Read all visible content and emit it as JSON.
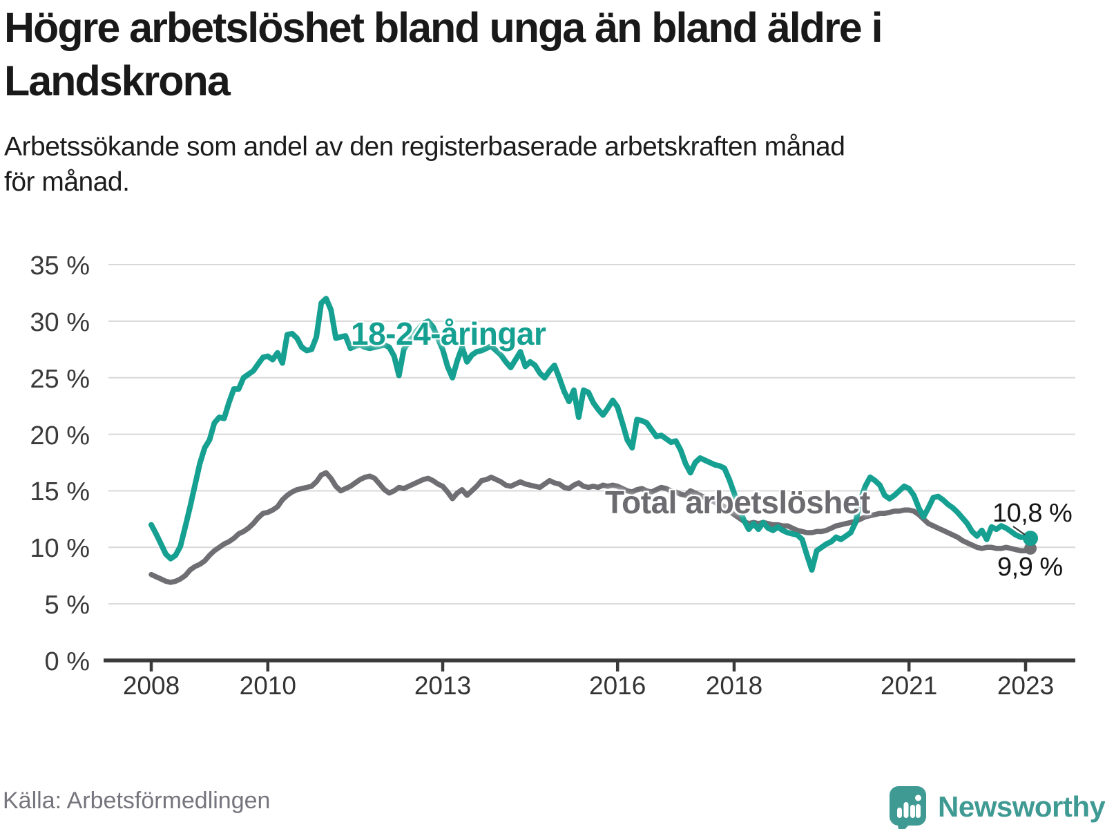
{
  "header": {
    "title": "Högre arbetslöshet bland unga än bland äldre i\nLandskrona",
    "subtitle": "Arbetssökande som andel av den registerbaserade arbetskraften månad\nför månad."
  },
  "footer": {
    "source": "Källa: Arbetsförmedlingen",
    "brand": "Newsworthy"
  },
  "colors": {
    "youth_line": "#15a091",
    "total_line": "#6e6e73",
    "grid": "#d8d8d8",
    "axis": "#3a3a3a",
    "title_text": "#191919",
    "footer_text": "#75757d",
    "logo": "#3f9a93",
    "annotation_text": "#151515"
  },
  "chart_data": {
    "type": "line",
    "unit": "%",
    "grid": "horizontal",
    "legend_position": "inline-labels",
    "ylim": [
      0,
      35
    ],
    "y_tick_values": [
      35,
      30,
      25,
      20,
      15,
      10,
      5,
      0
    ],
    "y_ticks": [
      "35 %",
      "30 %",
      "25 %",
      "20 %",
      "15 %",
      "10 %",
      "5 %",
      "0 %"
    ],
    "x_ticks": [
      2008,
      2010,
      2013,
      2016,
      2018,
      2021,
      2023
    ],
    "x_monthly_from": "2008-01",
    "x_monthly_to": "2023-02",
    "series": [
      {
        "name": "18-24-åringar",
        "color": "#15a091",
        "end_label": "10,8 %",
        "end_value": 10.8,
        "values": [
          12.0,
          11.2,
          10.3,
          9.4,
          9.0,
          9.3,
          10.1,
          11.8,
          13.6,
          15.5,
          17.4,
          18.8,
          19.5,
          21.0,
          21.5,
          21.4,
          22.8,
          24.0,
          24.0,
          25.0,
          25.3,
          25.6,
          26.2,
          26.8,
          26.9,
          26.6,
          27.2,
          26.3,
          28.8,
          28.9,
          28.5,
          27.7,
          27.4,
          27.5,
          28.6,
          31.6,
          32.0,
          31.0,
          28.5,
          28.6,
          28.7,
          27.6,
          27.8,
          27.9,
          27.7,
          27.6,
          27.7,
          27.8,
          27.9,
          27.7,
          26.9,
          25.2,
          27.5,
          28.2,
          28.8,
          29.3,
          29.8,
          30.0,
          29.5,
          28.5,
          27.5,
          26.0,
          25.0,
          26.5,
          27.7,
          26.4,
          27.0,
          27.3,
          27.4,
          27.6,
          27.8,
          27.4,
          27.0,
          26.4,
          25.9,
          26.6,
          27.3,
          26.0,
          26.4,
          26.1,
          25.4,
          25.0,
          25.6,
          26.1,
          25.0,
          23.8,
          22.9,
          23.9,
          21.5,
          23.9,
          23.7,
          22.8,
          22.2,
          21.7,
          22.3,
          23.0,
          22.4,
          21.0,
          19.5,
          18.8,
          21.3,
          21.2,
          21.0,
          20.4,
          19.8,
          19.9,
          19.6,
          19.3,
          19.4,
          18.6,
          17.4,
          16.6,
          17.5,
          17.9,
          17.7,
          17.5,
          17.3,
          17.2,
          17.0,
          16.0,
          14.8,
          13.5,
          12.4,
          11.6,
          12.1,
          11.6,
          12.2,
          11.7,
          11.5,
          11.8,
          11.5,
          11.3,
          11.2,
          11.1,
          10.7,
          9.3,
          8.0,
          9.7,
          10.0,
          10.3,
          10.5,
          10.9,
          10.7,
          11.0,
          11.3,
          12.2,
          14.2,
          15.4,
          16.2,
          15.9,
          15.5,
          14.6,
          14.3,
          14.6,
          15.0,
          15.4,
          15.2,
          14.6,
          13.5,
          12.7,
          13.5,
          14.4,
          14.5,
          14.2,
          13.8,
          13.5,
          13.1,
          12.6,
          12.1,
          11.4,
          11.0,
          11.5,
          10.7,
          11.8,
          11.6,
          11.9,
          11.7,
          11.4,
          11.1,
          10.9,
          10.9,
          10.8
        ]
      },
      {
        "name": "Total arbetslöshet",
        "color": "#6e6e73",
        "end_label": "9,9 %",
        "end_value": 9.9,
        "values": [
          7.6,
          7.4,
          7.2,
          7.0,
          6.9,
          7.0,
          7.2,
          7.5,
          8.0,
          8.3,
          8.5,
          8.8,
          9.3,
          9.7,
          10.0,
          10.3,
          10.5,
          10.8,
          11.2,
          11.4,
          11.7,
          12.1,
          12.6,
          13.0,
          13.1,
          13.3,
          13.6,
          14.2,
          14.6,
          14.9,
          15.1,
          15.2,
          15.3,
          15.4,
          15.8,
          16.4,
          16.6,
          16.1,
          15.4,
          15.0,
          15.2,
          15.4,
          15.7,
          16.0,
          16.2,
          16.3,
          16.1,
          15.6,
          15.1,
          14.8,
          15.0,
          15.3,
          15.2,
          15.4,
          15.6,
          15.8,
          16.0,
          16.1,
          15.9,
          15.6,
          15.4,
          14.9,
          14.3,
          14.8,
          15.1,
          14.6,
          15.0,
          15.4,
          15.9,
          16.0,
          16.2,
          16.0,
          15.8,
          15.5,
          15.4,
          15.6,
          15.8,
          15.6,
          15.5,
          15.4,
          15.3,
          15.6,
          15.9,
          15.7,
          15.6,
          15.3,
          15.2,
          15.5,
          15.7,
          15.4,
          15.3,
          15.4,
          15.3,
          15.5,
          15.4,
          15.5,
          15.4,
          15.2,
          15.0,
          14.9,
          15.1,
          15.2,
          15.0,
          14.9,
          15.1,
          15.3,
          15.2,
          15.0,
          14.9,
          14.7,
          14.6,
          15.0,
          14.8,
          14.6,
          14.4,
          14.2,
          14.0,
          13.8,
          13.6,
          13.2,
          12.9,
          12.6,
          12.3,
          12.1,
          12.2,
          12.1,
          12.2,
          12.1,
          12.0,
          12.0,
          11.9,
          11.9,
          11.7,
          11.5,
          11.4,
          11.3,
          11.3,
          11.4,
          11.4,
          11.5,
          11.7,
          11.9,
          12.0,
          12.1,
          12.2,
          12.3,
          12.5,
          12.7,
          12.8,
          12.9,
          13.0,
          13.0,
          13.1,
          13.2,
          13.2,
          13.3,
          13.3,
          13.2,
          12.9,
          12.5,
          12.1,
          11.9,
          11.7,
          11.5,
          11.3,
          11.1,
          10.9,
          10.6,
          10.4,
          10.2,
          10.0,
          9.9,
          10.0,
          10.0,
          9.9,
          9.9,
          10.0,
          9.9,
          9.8,
          9.7,
          9.7,
          9.9
        ]
      }
    ]
  }
}
